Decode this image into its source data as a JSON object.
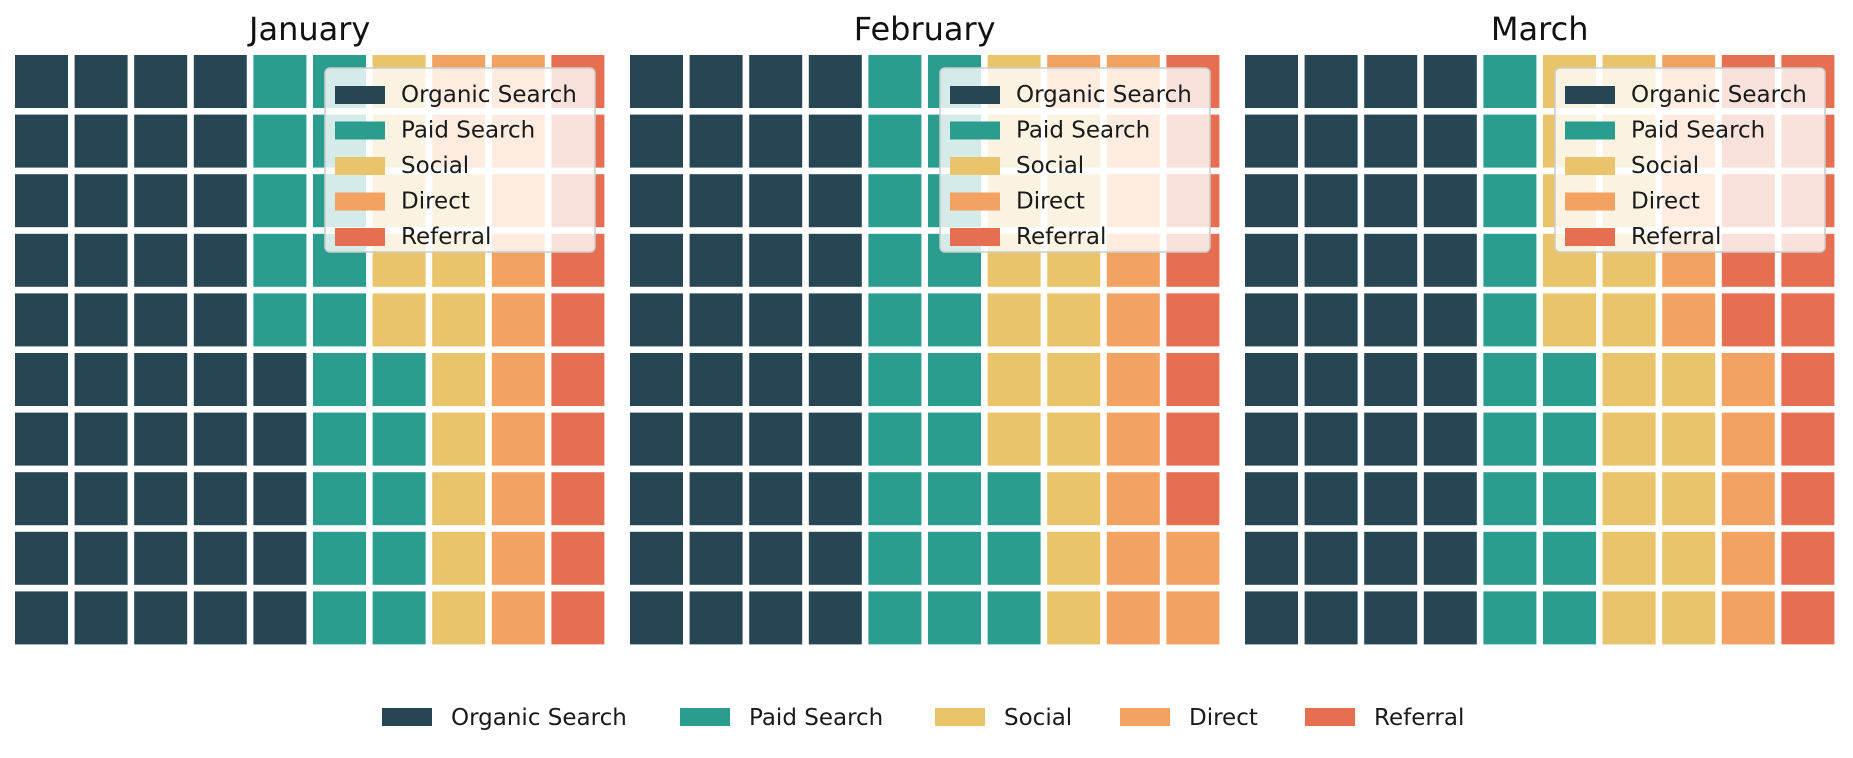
{
  "colors": {
    "Organic Search": "#264653",
    "Paid Search": "#2a9d8f",
    "Social": "#e9c46a",
    "Direct": "#f4a261",
    "Referral": "#e76f51"
  },
  "chart_data": {
    "type": "waffle",
    "grid": {
      "rows": 10,
      "cols": 10
    },
    "categories": [
      "Organic Search",
      "Paid Search",
      "Social",
      "Direct",
      "Referral"
    ],
    "panels": [
      {
        "title": "January",
        "values": [
          45,
          20,
          13,
          12,
          10
        ]
      },
      {
        "title": "February",
        "values": [
          40,
          23,
          16,
          13,
          8
        ]
      },
      {
        "title": "March",
        "values": [
          40,
          15,
          20,
          10,
          15
        ]
      }
    ],
    "panel_legend": [
      "Organic Search",
      "Paid Search",
      "Social",
      "Direct",
      "Referral"
    ],
    "figure_legend": [
      "Organic Search",
      "Paid Search",
      "Social",
      "Direct",
      "Referral"
    ]
  }
}
